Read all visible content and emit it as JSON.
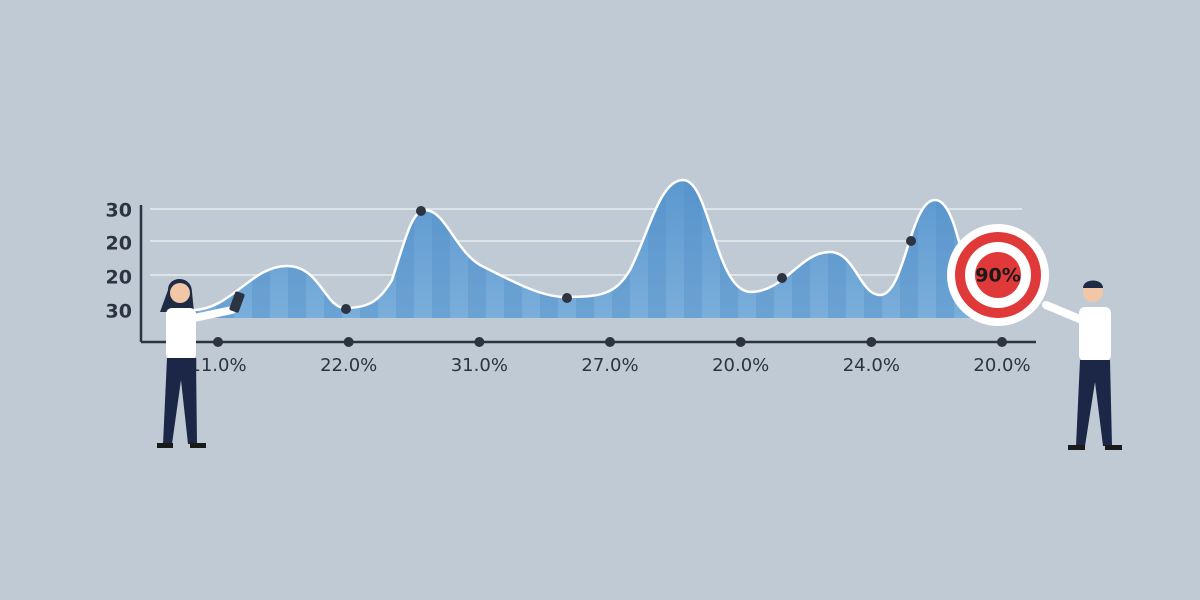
{
  "axis": {
    "y_labels": [
      "30",
      "20",
      "20",
      "30"
    ],
    "x_labels": [
      "11.0%",
      "22.0%",
      "31.0%",
      "27.0%",
      "20.0%",
      "24.0%",
      "20.0%"
    ]
  },
  "target": {
    "label": "90%"
  }
}
